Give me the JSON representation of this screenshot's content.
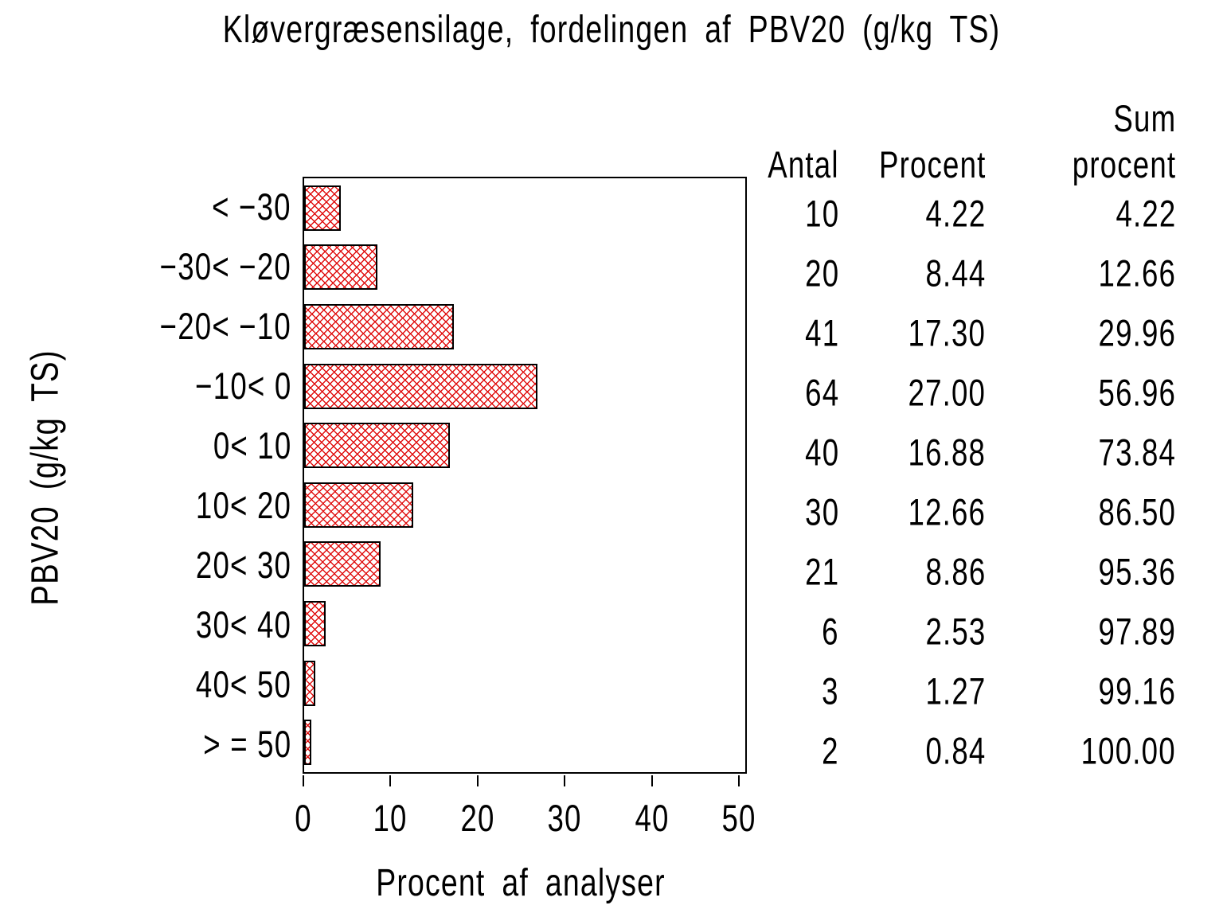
{
  "chart_data": {
    "type": "bar",
    "orientation": "horizontal",
    "title": "Kløvergræsensilage, fordelingen af PBV20 (g/kg TS)",
    "categories": [
      "< −30",
      "−30< −20",
      "−20< −10",
      "−10< 0",
      "0< 10",
      "10< 20",
      "20< 30",
      "30< 40",
      "40< 50",
      "> = 50"
    ],
    "values": [
      4.22,
      8.44,
      17.3,
      27.0,
      16.88,
      12.66,
      8.86,
      2.53,
      1.27,
      0.84
    ],
    "counts": [
      10,
      20,
      41,
      64,
      40,
      30,
      21,
      6,
      3,
      2
    ],
    "cumulative_percent": [
      4.22,
      12.66,
      29.96,
      56.96,
      73.84,
      86.5,
      95.36,
      97.89,
      99.16,
      100.0
    ],
    "xlabel": "Procent af analyser",
    "ylabel": "PBV20 (g/kg TS)",
    "xlim": [
      0,
      50
    ],
    "x_tick_labels": [
      "0",
      "10",
      "20",
      "30",
      "40",
      "50"
    ],
    "grid": false,
    "legend": false,
    "bar_fill": "diagonal-crosshatch",
    "hatch_color": "#e01010",
    "bar_border_color": "#000000",
    "frame_color": "#000000"
  },
  "table": {
    "headers": {
      "antal": "Antal",
      "procent": "Procent",
      "sum_line1": "Sum",
      "sum_line2": "procent"
    },
    "rows": [
      {
        "antal": "10",
        "procent": "4.22",
        "sum": "4.22"
      },
      {
        "antal": "20",
        "procent": "8.44",
        "sum": "12.66"
      },
      {
        "antal": "41",
        "procent": "17.30",
        "sum": "29.96"
      },
      {
        "antal": "64",
        "procent": "27.00",
        "sum": "56.96"
      },
      {
        "antal": "40",
        "procent": "16.88",
        "sum": "73.84"
      },
      {
        "antal": "30",
        "procent": "12.66",
        "sum": "86.50"
      },
      {
        "antal": "21",
        "procent": "8.86",
        "sum": "95.36"
      },
      {
        "antal": "6",
        "procent": "2.53",
        "sum": "97.89"
      },
      {
        "antal": "3",
        "procent": "1.27",
        "sum": "99.16"
      },
      {
        "antal": "2",
        "procent": "0.84",
        "sum": "100.00"
      }
    ]
  }
}
